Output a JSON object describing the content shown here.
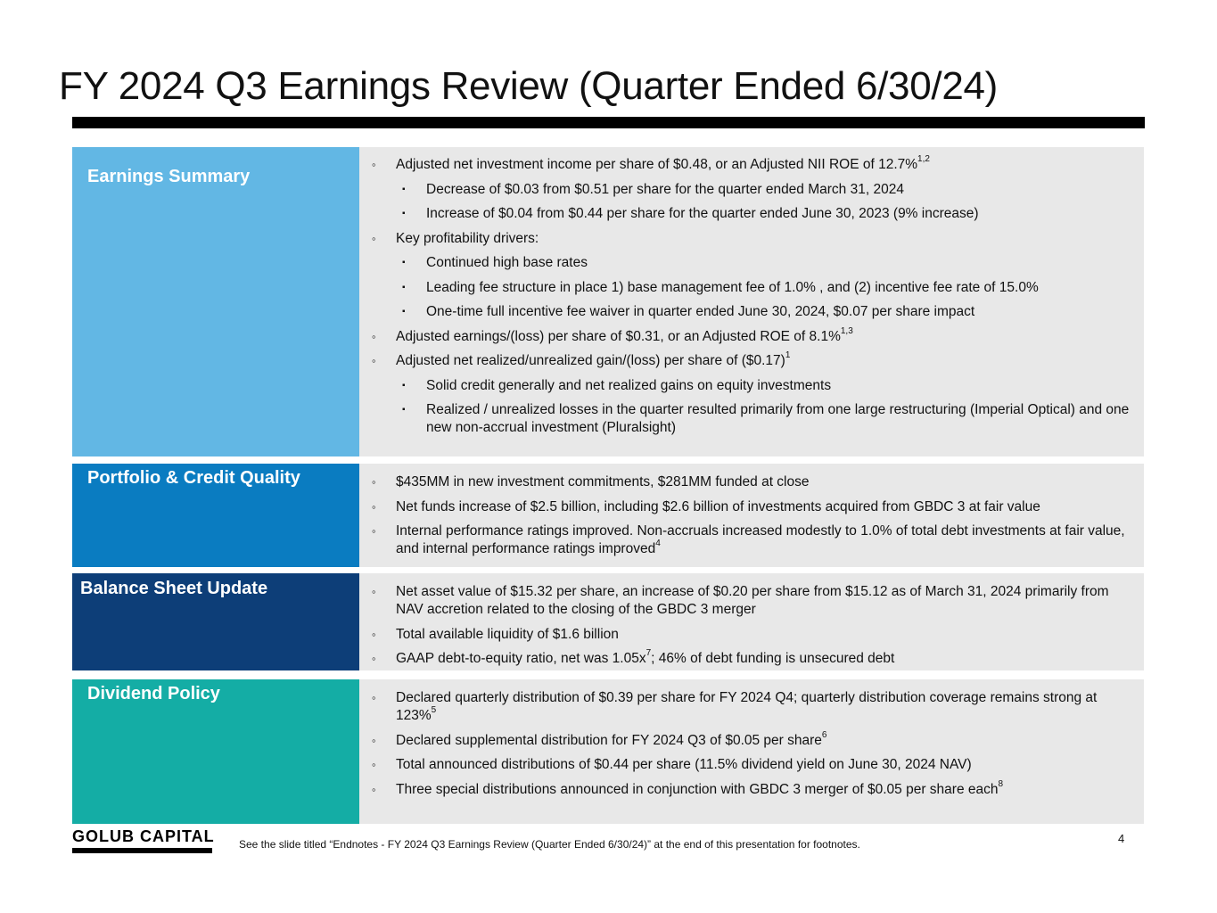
{
  "title": "FY 2024 Q3 Earnings Review (Quarter Ended 6/30/24)",
  "colors": {
    "earnings": "#62b7e4",
    "portfolio": "#0a7cc1",
    "balance": "#0d3e78",
    "dividend": "#14ada5",
    "content_bg": "#e8e8e8"
  },
  "sections": {
    "earnings": {
      "label": "Earnings Summary",
      "items": [
        {
          "text": "Adjusted net investment income per share of $0.48, or an Adjusted NII ROE of 12.7%",
          "sup": "1,2"
        },
        {
          "text": "Decrease of $0.03 from $0.51 per share for the quarter ended March 31, 2024"
        },
        {
          "text": "Increase of $0.04 from $0.44 per share for the quarter ended June 30, 2023 (9% increase)"
        },
        {
          "text": "Key profitability drivers:"
        },
        {
          "text": "Continued high base rates"
        },
        {
          "text": "Leading fee structure in place 1) base management fee of 1.0% , and (2) incentive fee rate of 15.0%"
        },
        {
          "text": "One-time full incentive fee waiver in quarter ended June 30, 2024, $0.07 per share impact"
        },
        {
          "text": "Adjusted earnings/(loss) per share of $0.31, or an Adjusted ROE of 8.1%",
          "sup": "1,3"
        },
        {
          "text": "Adjusted net realized/unrealized gain/(loss) per share of ($0.17)",
          "sup": "1"
        },
        {
          "text": "Solid credit generally and net realized gains on equity investments"
        },
        {
          "text": "Realized / unrealized losses in the quarter resulted primarily from one large restructuring (Imperial Optical) and one new non-accrual investment (Pluralsight)"
        }
      ]
    },
    "portfolio": {
      "label": "Portfolio & Credit Quality",
      "items": [
        {
          "text": "$435MM in new investment commitments, $281MM funded at close"
        },
        {
          "text": "Net funds increase of $2.5 billion, including $2.6 billion of investments acquired from GBDC 3 at fair value"
        },
        {
          "text": "Internal performance ratings improved. Non-accruals increased modestly to 1.0% of total debt investments at fair value, and internal performance ratings improved",
          "sup": "4"
        }
      ]
    },
    "balance": {
      "label": "Balance Sheet Update",
      "items": [
        {
          "text": "Net asset value of $15.32 per share, an increase of $0.20 per share from $15.12 as of March 31, 2024 primarily from NAV accretion related to the closing of the GBDC 3 merger"
        },
        {
          "text": "Total available liquidity of $1.6 billion"
        },
        {
          "text_a": "GAAP debt-to-equity ratio, net was 1.05x",
          "sup": "7",
          "text_b": "; 46%  of debt funding is unsecured debt"
        }
      ]
    },
    "dividend": {
      "label": "Dividend Policy",
      "items": [
        {
          "text": "Declared quarterly distribution of $0.39 per share for FY 2024 Q4; quarterly distribution coverage remains strong at 123%",
          "sup": "5"
        },
        {
          "text": "Declared supplemental distribution for FY 2024 Q3 of $0.05 per share",
          "sup": "6"
        },
        {
          "text": "Total announced distributions of $0.44 per share (11.5% dividend yield on June 30, 2024 NAV)"
        },
        {
          "text": "Three special distributions announced in conjunction with GBDC 3 merger of $0.05 per share each",
          "sup": "8"
        }
      ]
    }
  },
  "footer": {
    "logo": "GOLUB CAPITAL",
    "note": "See the slide titled “Endnotes - FY 2024 Q3 Earnings Review (Quarter Ended 6/30/24)” at the end of this presentation for footnotes.",
    "page": "4"
  }
}
